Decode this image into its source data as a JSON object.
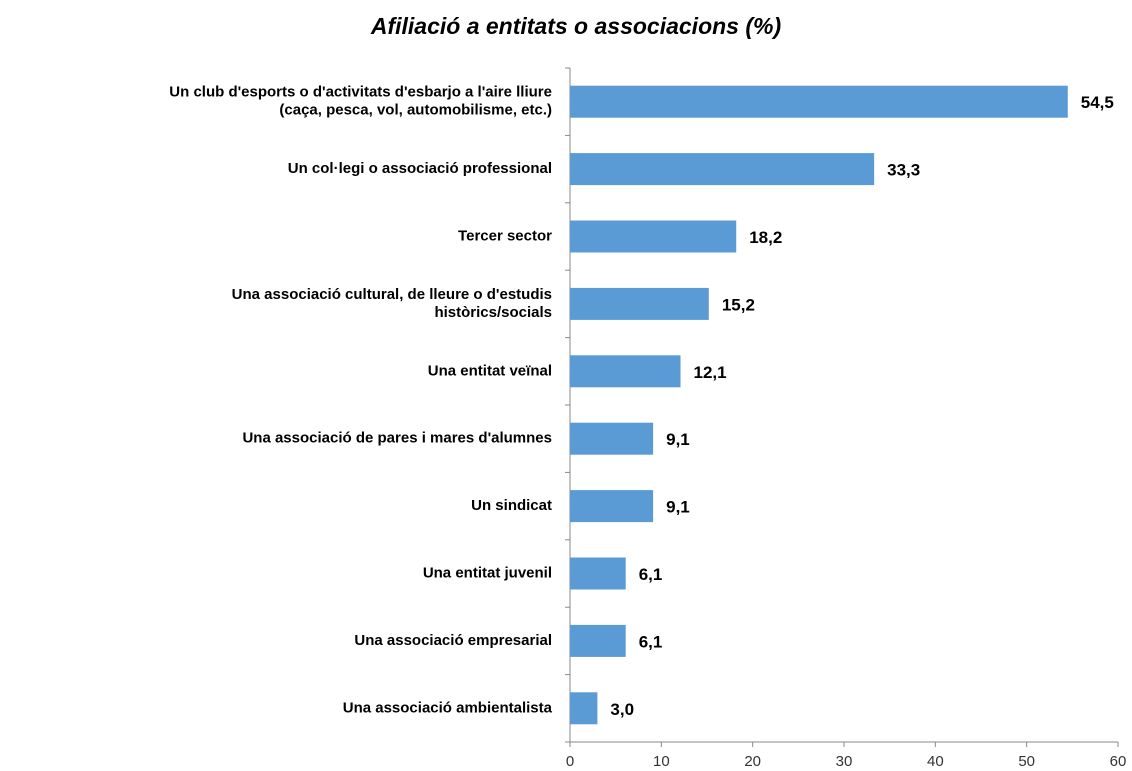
{
  "chart_data": {
    "type": "bar",
    "orientation": "horizontal",
    "title": "Afiliació a entitats o associacions (%)",
    "categories": [
      [
        "Un club d'esports o d'activitats d'esbarjo a l'aire lliure",
        "(caça, pesca, vol, automobilisme, etc.)"
      ],
      [
        "Un col·legi o associació professional"
      ],
      [
        "Tercer sector"
      ],
      [
        "Una associació cultural, de lleure o d'estudis",
        "històrics/socials"
      ],
      [
        "Una entitat veïnal"
      ],
      [
        "Una associació de pares i mares d'alumnes"
      ],
      [
        "Un sindicat"
      ],
      [
        "Una entitat juvenil"
      ],
      [
        "Una associació empresarial"
      ],
      [
        "Una associació ambientalista"
      ]
    ],
    "values": [
      54.5,
      33.3,
      18.2,
      15.2,
      12.1,
      9.1,
      9.1,
      6.1,
      6.1,
      3.0
    ],
    "value_labels": [
      "54,5",
      "33,3",
      "18,2",
      "15,2",
      "12,1",
      "9,1",
      "9,1",
      "6,1",
      "6,1",
      "3,0"
    ],
    "color": "#5b9bd5",
    "xlim": [
      0,
      60
    ],
    "xticks": [
      0,
      10,
      20,
      30,
      40,
      50,
      60
    ],
    "grid": false
  }
}
